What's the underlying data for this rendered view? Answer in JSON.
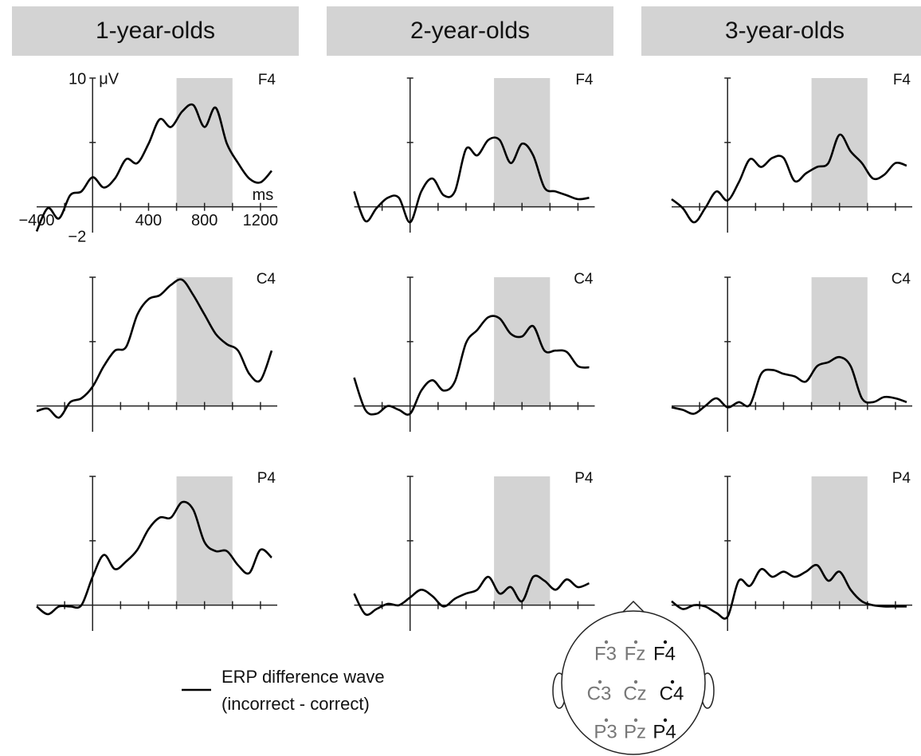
{
  "chart_data": [
    {
      "type": "line",
      "title": "1-year-olds",
      "panel_label": "F4",
      "xlabel": "ms",
      "ylabel": "μV",
      "x": [
        -400,
        -320,
        -240,
        -160,
        -80,
        0,
        80,
        160,
        240,
        320,
        400,
        480,
        560,
        640,
        720,
        800,
        880,
        960,
        1040,
        1120,
        1200,
        1280
      ],
      "series": [
        {
          "color": "#000000",
          "values": [
            -1.9,
            -0.1,
            -0.9,
            0.9,
            1.2,
            2.3,
            1.5,
            2.2,
            3.7,
            3.4,
            4.9,
            6.8,
            6.2,
            7.4,
            7.9,
            6.2,
            7.7,
            4.9,
            3.4,
            2.2,
            1.9,
            2.8
          ]
        }
      ],
      "xlim": [
        -400,
        1320
      ],
      "ylim": [
        -2,
        10
      ],
      "xticks": [
        -200,
        200,
        400,
        600,
        800,
        1000,
        1200
      ],
      "yticks": [
        5,
        10
      ],
      "xtick_labels": [
        {
          "value": -400,
          "label": "−400"
        },
        400,
        800,
        1200
      ],
      "ytick_labels": [
        10,
        {
          "value": -2,
          "label": "−2"
        }
      ],
      "highlight": {
        "range": [
          600,
          1000
        ],
        "color": "#d3d3d3"
      }
    },
    {
      "type": "line",
      "title": "2-year-olds",
      "panel_label": "F4",
      "x": [
        -400,
        -320,
        -240,
        -160,
        -80,
        0,
        80,
        160,
        240,
        320,
        400,
        480,
        560,
        640,
        720,
        800,
        880,
        960,
        1040,
        1120,
        1200,
        1280
      ],
      "series": [
        {
          "color": "#000000",
          "values": [
            1.2,
            -1.1,
            -0.1,
            0.7,
            0.7,
            -1.2,
            1.2,
            2.2,
            0.9,
            1.2,
            4.5,
            4.0,
            5.2,
            5.2,
            3.4,
            4.9,
            4.0,
            1.5,
            1.2,
            0.9,
            0.6,
            0.7
          ]
        }
      ],
      "xlim": [
        -400,
        1320
      ],
      "ylim": [
        -2,
        10
      ],
      "xticks": [
        -200,
        200,
        400,
        600,
        800,
        1000,
        1200
      ],
      "yticks": [
        5,
        10
      ],
      "highlight": {
        "range": [
          600,
          1000
        ],
        "color": "#d3d3d3"
      }
    },
    {
      "type": "line",
      "title": "3-year-olds",
      "panel_label": "F4",
      "x": [
        -400,
        -320,
        -240,
        -160,
        -80,
        0,
        80,
        160,
        240,
        320,
        400,
        480,
        560,
        640,
        720,
        800,
        880,
        960,
        1040,
        1120,
        1200,
        1280
      ],
      "series": [
        {
          "color": "#000000",
          "values": [
            0.6,
            -0.1,
            -1.2,
            -0.1,
            1.2,
            0.5,
            1.9,
            3.7,
            3.1,
            3.8,
            3.8,
            2.0,
            2.6,
            3.1,
            3.4,
            5.6,
            4.3,
            3.4,
            2.2,
            2.5,
            3.4,
            3.2
          ]
        }
      ],
      "xlim": [
        -400,
        1320
      ],
      "ylim": [
        -2,
        10
      ],
      "xticks": [
        -200,
        200,
        400,
        600,
        800,
        1000,
        1200
      ],
      "yticks": [
        5,
        10
      ],
      "highlight": {
        "range": [
          600,
          1000
        ],
        "color": "#d3d3d3"
      }
    },
    {
      "type": "line",
      "panel_label": "C4",
      "x": [
        -400,
        -320,
        -240,
        -160,
        -80,
        0,
        80,
        160,
        240,
        320,
        400,
        480,
        560,
        640,
        720,
        800,
        880,
        960,
        1040,
        1120,
        1200,
        1280
      ],
      "series": [
        {
          "color": "#000000",
          "values": [
            -0.4,
            -0.2,
            -0.9,
            0.3,
            0.6,
            1.5,
            3.1,
            4.3,
            4.6,
            7.1,
            8.3,
            8.6,
            9.4,
            9.8,
            8.6,
            7.1,
            5.6,
            4.8,
            4.3,
            2.5,
            2.0,
            4.3
          ]
        }
      ],
      "xlim": [
        -400,
        1320
      ],
      "ylim": [
        -2,
        10
      ],
      "xticks": [
        -200,
        200,
        400,
        600,
        800,
        1000,
        1200
      ],
      "yticks": [
        5,
        10
      ],
      "highlight": {
        "range": [
          600,
          1000
        ],
        "color": "#d3d3d3"
      }
    },
    {
      "type": "line",
      "panel_label": "C4",
      "x": [
        -400,
        -320,
        -240,
        -160,
        -80,
        0,
        80,
        160,
        240,
        320,
        400,
        480,
        560,
        640,
        720,
        800,
        880,
        960,
        1040,
        1120,
        1200,
        1280
      ],
      "series": [
        {
          "color": "#000000",
          "values": [
            2.2,
            -0.3,
            -0.6,
            0,
            -0.3,
            -0.6,
            1.2,
            2.0,
            1.2,
            1.9,
            4.9,
            5.9,
            6.9,
            6.8,
            5.6,
            5.4,
            6.2,
            4.3,
            4.3,
            4.2,
            3.1,
            3.0
          ]
        }
      ],
      "xlim": [
        -400,
        1320
      ],
      "ylim": [
        -2,
        10
      ],
      "xticks": [
        -200,
        200,
        400,
        600,
        800,
        1000,
        1200
      ],
      "yticks": [
        5,
        10
      ],
      "highlight": {
        "range": [
          600,
          1000
        ],
        "color": "#d3d3d3"
      }
    },
    {
      "type": "line",
      "panel_label": "C4",
      "x": [
        -400,
        -320,
        -240,
        -160,
        -80,
        0,
        80,
        160,
        240,
        320,
        400,
        480,
        560,
        640,
        720,
        800,
        880,
        960,
        1040,
        1120,
        1200,
        1280
      ],
      "series": [
        {
          "color": "#000000",
          "values": [
            -0.1,
            -0.3,
            -0.6,
            0,
            0.6,
            -0.1,
            0.3,
            0.1,
            2.5,
            2.8,
            2.5,
            2.3,
            1.9,
            3.1,
            3.4,
            3.8,
            3.1,
            0.6,
            0.3,
            0.7,
            0.6,
            0.3
          ]
        }
      ],
      "xlim": [
        -400,
        1320
      ],
      "ylim": [
        -2,
        10
      ],
      "xticks": [
        -200,
        200,
        400,
        600,
        800,
        1000,
        1200
      ],
      "yticks": [
        5,
        10
      ],
      "highlight": {
        "range": [
          600,
          1000
        ],
        "color": "#d3d3d3"
      }
    },
    {
      "type": "line",
      "panel_label": "P4",
      "x": [
        -400,
        -320,
        -240,
        -160,
        -80,
        0,
        80,
        160,
        240,
        320,
        400,
        480,
        560,
        640,
        720,
        800,
        880,
        960,
        1040,
        1120,
        1200,
        1280
      ],
      "series": [
        {
          "color": "#000000",
          "values": [
            -0.1,
            -0.7,
            -0.1,
            -0.1,
            0,
            2.2,
            3.9,
            2.8,
            3.4,
            4.3,
            5.9,
            6.8,
            6.8,
            8.0,
            7.4,
            4.9,
            4.2,
            4.2,
            3.1,
            2.5,
            4.3,
            3.7
          ]
        }
      ],
      "xlim": [
        -400,
        1320
      ],
      "ylim": [
        -2,
        10
      ],
      "xticks": [
        -200,
        200,
        400,
        600,
        800,
        1000,
        1200
      ],
      "yticks": [
        5,
        10
      ],
      "highlight": {
        "range": [
          600,
          1000
        ],
        "color": "#d3d3d3"
      }
    },
    {
      "type": "line",
      "panel_label": "P4",
      "x": [
        -400,
        -320,
        -240,
        -160,
        -80,
        0,
        80,
        160,
        240,
        320,
        400,
        480,
        560,
        640,
        720,
        800,
        880,
        960,
        1040,
        1120,
        1200,
        1280
      ],
      "series": [
        {
          "color": "#000000",
          "values": [
            0.9,
            -0.7,
            -0.3,
            0.1,
            0,
            0.6,
            1.2,
            0.7,
            -0.1,
            0.5,
            0.9,
            1.2,
            2.2,
            0.9,
            1.4,
            0.3,
            2.2,
            1.9,
            1.2,
            2.0,
            1.4,
            1.7
          ]
        }
      ],
      "xlim": [
        -400,
        1320
      ],
      "ylim": [
        -2,
        10
      ],
      "xticks": [
        -200,
        200,
        400,
        600,
        800,
        1000,
        1200
      ],
      "yticks": [
        5,
        10
      ],
      "highlight": {
        "range": [
          600,
          1000
        ],
        "color": "#d3d3d3"
      }
    },
    {
      "type": "line",
      "panel_label": "P4",
      "x": [
        -400,
        -320,
        -240,
        -160,
        -80,
        0,
        80,
        160,
        240,
        320,
        400,
        480,
        560,
        640,
        720,
        800,
        880,
        960,
        1040,
        1120,
        1200,
        1280
      ],
      "series": [
        {
          "color": "#000000",
          "values": [
            0.3,
            -0.3,
            0,
            -0.1,
            -0.6,
            -0.9,
            1.9,
            1.5,
            2.8,
            2.2,
            2.6,
            2.2,
            2.6,
            3.1,
            1.9,
            2.6,
            1.2,
            0.3,
            0,
            -0.1,
            -0.1,
            -0.1
          ]
        }
      ],
      "xlim": [
        -400,
        1320
      ],
      "ylim": [
        -2,
        10
      ],
      "xticks": [
        -200,
        200,
        400,
        600,
        800,
        1000,
        1200
      ],
      "yticks": [
        5,
        10
      ],
      "highlight": {
        "range": [
          600,
          1000
        ],
        "color": "#d3d3d3"
      }
    }
  ],
  "legend": {
    "lines": [
      "ERP difference wave",
      "(incorrect - correct)"
    ],
    "color": "#000000"
  },
  "head_map": {
    "electrodes": [
      {
        "label": "F3",
        "highlighted": false
      },
      {
        "label": "Fz",
        "highlighted": false
      },
      {
        "label": "F4",
        "highlighted": true
      },
      {
        "label": "C3",
        "highlighted": false
      },
      {
        "label": "Cz",
        "highlighted": false
      },
      {
        "label": "C4",
        "highlighted": true
      },
      {
        "label": "P3",
        "highlighted": false
      },
      {
        "label": "Pz",
        "highlighted": false
      },
      {
        "label": "P4",
        "highlighted": true
      }
    ]
  }
}
